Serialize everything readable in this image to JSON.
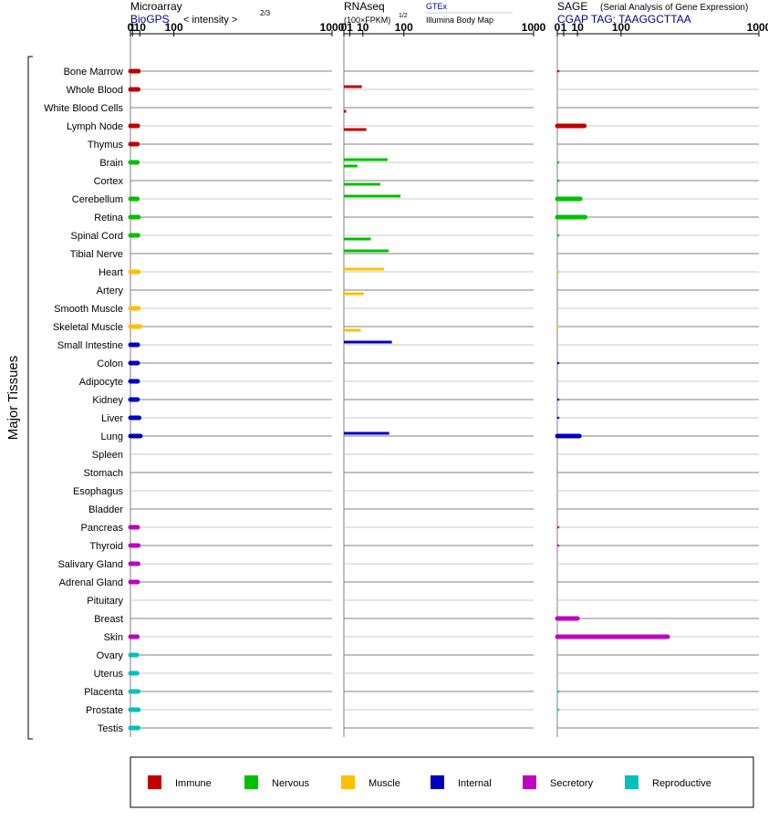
{
  "panels": {
    "microarray": {
      "title": "Microarray",
      "source": "BioGPS",
      "unit": "< intensity >",
      "exponent": "2/3"
    },
    "rnaseq": {
      "title": "RNAseq",
      "unit": "(100×FPKM)",
      "exponent": "1/2",
      "legend_gtex": "GTEx",
      "legend_ibm": "Illumina Body Map"
    },
    "sage": {
      "title": "SAGE",
      "subtitle": "(Serial Analysis of Gene Expression)",
      "tag": "CGAP TAG: TAAGGCTTAA"
    }
  },
  "y_axis_label": "Major Tissues",
  "tick_labels": [
    "0",
    "1",
    "10",
    "100",
    "1000"
  ],
  "chart_data": {
    "type": "bar",
    "orientation": "horizontal",
    "x_scale": "power",
    "x_range": [
      0,
      1000
    ],
    "x_ticks": [
      0,
      1,
      10,
      100,
      1000
    ],
    "grid": true,
    "categories": [
      "Bone Marrow",
      "Whole Blood",
      "White Blood Cells",
      "Lymph Node",
      "Thymus",
      "Brain",
      "Cortex",
      "Cerebellum",
      "Retina",
      "Spinal Cord",
      "Tibial Nerve",
      "Heart",
      "Artery",
      "Smooth Muscle",
      "Skeletal Muscle",
      "Small Intestine",
      "Colon",
      "Adipocyte",
      "Kidney",
      "Liver",
      "Lung",
      "Spleen",
      "Stomach",
      "Esophagus",
      "Bladder",
      "Pancreas",
      "Thyroid",
      "Salivary Gland",
      "Adrenal Gland",
      "Pituitary",
      "Breast",
      "Skin",
      "Ovary",
      "Uterus",
      "Placenta",
      "Prostate",
      "Testis"
    ],
    "groups": [
      "immune",
      "immune",
      "immune",
      "immune",
      "immune",
      "nervous",
      "nervous",
      "nervous",
      "nervous",
      "nervous",
      "nervous",
      "muscle",
      "muscle",
      "muscle",
      "muscle",
      "internal",
      "internal",
      "internal",
      "internal",
      "internal",
      "internal",
      "internal",
      "internal",
      "internal",
      "internal",
      "secretory",
      "secretory",
      "secretory",
      "secretory",
      "secretory",
      "secretory",
      "secretory",
      "reproductive",
      "reproductive",
      "reproductive",
      "reproductive",
      "reproductive"
    ],
    "group_colors": {
      "immune": "#c00000",
      "nervous": "#00c000",
      "muscle": "#ffc000",
      "internal": "#0000c0",
      "secretory": "#c000c0",
      "reproductive": "#00c0c0"
    },
    "legend": [
      {
        "key": "immune",
        "label": "Immune"
      },
      {
        "key": "nervous",
        "label": "Nervous"
      },
      {
        "key": "muscle",
        "label": "Muscle"
      },
      {
        "key": "internal",
        "label": "Internal"
      },
      {
        "key": "secretory",
        "label": "Secretory"
      },
      {
        "key": "reproductive",
        "label": "Reproductive"
      }
    ],
    "legend_position": "bottom",
    "series": [
      {
        "name": "Microarray",
        "values": [
          8.0,
          7.6,
          null,
          7.0,
          6.4,
          6.4,
          null,
          6.4,
          8.0,
          7.3,
          null,
          8.0,
          null,
          8.0,
          10.4,
          7.0,
          6.8,
          6.7,
          6.6,
          9.0,
          11.0,
          null,
          null,
          null,
          null,
          6.8,
          7.7,
          7.5,
          6.9,
          null,
          null,
          6.4,
          5.6,
          6.0,
          7.6,
          7.9,
          7.5
        ]
      },
      {
        "name": "GTEx",
        "values": [
          null,
          9.0,
          null,
          null,
          null,
          53,
          null,
          89,
          null,
          null,
          56,
          45,
          null,
          null,
          null,
          64,
          null,
          null,
          null,
          null,
          57,
          null,
          null,
          null,
          null,
          null,
          null,
          null,
          null,
          null,
          null,
          null,
          null,
          null,
          null,
          null,
          null
        ]
      },
      {
        "name": "Illumina Body Map",
        "values": [
          null,
          null,
          0.15,
          14,
          null,
          5,
          37,
          null,
          null,
          20,
          null,
          null,
          11,
          null,
          8,
          null,
          null,
          null,
          null,
          null,
          null,
          null,
          null,
          null,
          null,
          null,
          null,
          null,
          null,
          null,
          null,
          null,
          null,
          null,
          null,
          null,
          null
        ]
      },
      {
        "name": "SAGE",
        "values": [
          0.05,
          null,
          null,
          18,
          null,
          0.1,
          0.1,
          13,
          19,
          0.1,
          null,
          0.05,
          null,
          null,
          0.05,
          null,
          0.1,
          null,
          0.1,
          0.1,
          12,
          null,
          null,
          null,
          null,
          0.1,
          0.1,
          null,
          null,
          null,
          10,
          300,
          null,
          null,
          0.1,
          0.1,
          null
        ]
      }
    ]
  }
}
